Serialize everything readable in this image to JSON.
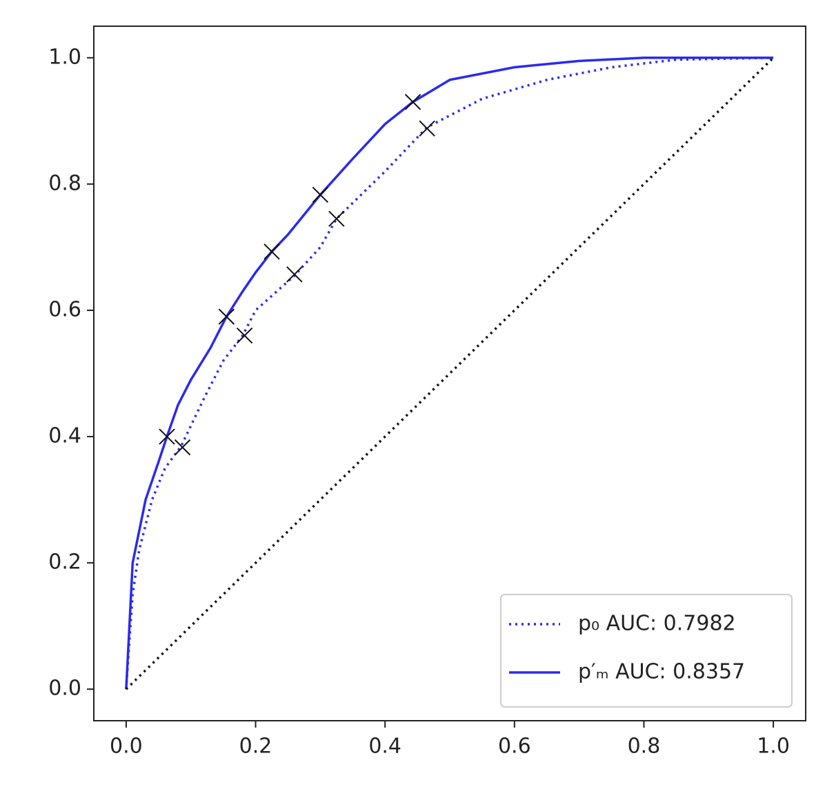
{
  "chart_data": {
    "type": "line",
    "xlim": [
      -0.05,
      1.05
    ],
    "ylim": [
      -0.05,
      1.05
    ],
    "xticks": [
      {
        "value": 0,
        "label": "0.0"
      },
      0.2,
      0.4,
      0.6,
      0.8,
      {
        "value": 1,
        "label": "1.0"
      }
    ],
    "yticks": [
      {
        "value": 0,
        "label": "0.0"
      },
      0.2,
      0.4,
      0.6,
      0.8,
      {
        "value": 1,
        "label": "1.0"
      }
    ],
    "grid": false,
    "legend": "lower right",
    "series": [
      {
        "name": "p₀ AUC: 0.7982",
        "color": "#2a2af0",
        "dash": "dotted",
        "x": [
          0,
          0.01,
          0.02,
          0.04,
          0.06,
          0.085,
          0.12,
          0.15,
          0.18,
          0.2,
          0.26,
          0.3,
          0.325,
          0.4,
          0.465,
          0.55,
          0.65,
          0.75,
          0.85,
          1
        ],
        "y": [
          0,
          0.15,
          0.22,
          0.3,
          0.35,
          0.385,
          0.46,
          0.52,
          0.56,
          0.6,
          0.655,
          0.7,
          0.745,
          0.82,
          0.89,
          0.935,
          0.965,
          0.985,
          0.997,
          1
        ],
        "markers_x": [
          0.087,
          0.183,
          0.26,
          0.325,
          0.465
        ],
        "markers_y": [
          0.383,
          0.56,
          0.657,
          0.745,
          0.888
        ],
        "marker_color": "#111"
      },
      {
        "name": "p′ₘ AUC: 0.8357",
        "color": "#2a2af0",
        "dash": "solid",
        "x": [
          0,
          0.005,
          0.01,
          0.02,
          0.03,
          0.05,
          0.063,
          0.08,
          0.1,
          0.13,
          0.155,
          0.18,
          0.2,
          0.225,
          0.25,
          0.3,
          0.35,
          0.4,
          0.443,
          0.5,
          0.6,
          0.7,
          0.8,
          1
        ],
        "y": [
          0,
          0.1,
          0.2,
          0.25,
          0.3,
          0.36,
          0.4,
          0.45,
          0.49,
          0.54,
          0.59,
          0.63,
          0.66,
          0.693,
          0.72,
          0.783,
          0.84,
          0.895,
          0.93,
          0.965,
          0.985,
          0.995,
          1,
          1
        ],
        "markers_x": [
          0.063,
          0.155,
          0.225,
          0.3,
          0.443
        ],
        "markers_y": [
          0.4,
          0.59,
          0.693,
          0.783,
          0.93
        ],
        "marker_color": "#111"
      },
      {
        "color": "#111",
        "dash": "dotted",
        "x": [
          0,
          1
        ],
        "y": [
          0,
          1
        ]
      }
    ]
  }
}
